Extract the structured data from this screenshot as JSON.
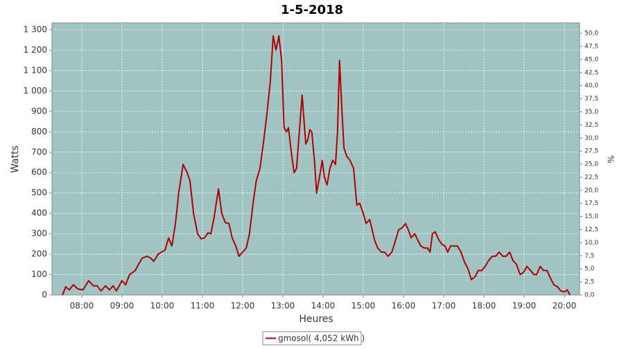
{
  "chart_data": {
    "type": "line",
    "title": "1-5-2018",
    "xlabel": "Heures",
    "ylabel": "Watts",
    "y2label": "%",
    "x": [
      7.52,
      7.6,
      7.69,
      7.79,
      7.9,
      8.03,
      8.17,
      8.29,
      8.38,
      8.48,
      8.59,
      8.69,
      8.78,
      8.86,
      9.0,
      9.09,
      9.19,
      9.33,
      9.41,
      9.5,
      9.62,
      9.72,
      9.79,
      9.9,
      9.98,
      10.07,
      10.16,
      10.24,
      10.33,
      10.41,
      10.52,
      10.62,
      10.69,
      10.78,
      10.88,
      10.97,
      11.05,
      11.14,
      11.21,
      11.29,
      11.4,
      11.48,
      11.57,
      11.66,
      11.74,
      11.83,
      11.91,
      12.0,
      12.09,
      12.17,
      12.26,
      12.34,
      12.43,
      12.52,
      12.6,
      12.69,
      12.76,
      12.83,
      12.9,
      12.97,
      13.03,
      13.09,
      13.14,
      13.21,
      13.28,
      13.34,
      13.41,
      13.48,
      13.57,
      13.62,
      13.67,
      13.72,
      13.79,
      13.84,
      13.93,
      13.98,
      14.03,
      14.1,
      14.17,
      14.24,
      14.31,
      14.36,
      14.41,
      14.47,
      14.52,
      14.59,
      14.67,
      14.76,
      14.84,
      14.91,
      15.0,
      15.07,
      15.16,
      15.22,
      15.28,
      15.36,
      15.45,
      15.53,
      15.62,
      15.71,
      15.79,
      15.88,
      15.97,
      16.05,
      16.12,
      16.19,
      16.28,
      16.34,
      16.43,
      16.52,
      16.6,
      16.66,
      16.72,
      16.79,
      16.88,
      16.95,
      17.03,
      17.1,
      17.17,
      17.26,
      17.34,
      17.43,
      17.52,
      17.6,
      17.69,
      17.78,
      17.86,
      17.95,
      18.03,
      18.12,
      18.21,
      18.29,
      18.38,
      18.47,
      18.55,
      18.64,
      18.72,
      18.81,
      18.9,
      18.98,
      19.07,
      19.16,
      19.24,
      19.31,
      19.4,
      19.48,
      19.57,
      19.66,
      19.74,
      19.83,
      19.91,
      20.0,
      20.07,
      20.14
    ],
    "series": [
      {
        "name": "gmosol( 4,052 kWh )",
        "color": "#b00000",
        "values": [
          0,
          40,
          25,
          50,
          30,
          25,
          70,
          45,
          45,
          20,
          45,
          25,
          45,
          20,
          70,
          50,
          100,
          120,
          150,
          180,
          190,
          180,
          165,
          200,
          210,
          220,
          280,
          240,
          350,
          500,
          640,
          600,
          560,
          400,
          300,
          275,
          280,
          305,
          300,
          380,
          520,
          400,
          355,
          350,
          280,
          240,
          190,
          210,
          230,
          300,
          450,
          560,
          620,
          750,
          880,
          1050,
          1270,
          1200,
          1270,
          1150,
          820,
          800,
          820,
          700,
          600,
          620,
          800,
          980,
          740,
          760,
          810,
          800,
          650,
          500,
          600,
          660,
          580,
          540,
          620,
          660,
          640,
          800,
          1150,
          900,
          720,
          680,
          660,
          620,
          440,
          450,
          400,
          350,
          370,
          320,
          270,
          230,
          210,
          210,
          190,
          210,
          260,
          320,
          330,
          350,
          320,
          280,
          300,
          275,
          240,
          230,
          230,
          210,
          300,
          310,
          270,
          250,
          240,
          210,
          240,
          240,
          240,
          210,
          160,
          130,
          75,
          90,
          120,
          120,
          140,
          170,
          190,
          190,
          210,
          190,
          190,
          210,
          170,
          150,
          100,
          110,
          140,
          120,
          100,
          100,
          140,
          120,
          120,
          80,
          50,
          40,
          20,
          15,
          25,
          0
        ]
      }
    ],
    "xlim": [
      7.26,
      20.38
    ],
    "xticks": [
      {
        "value": 8,
        "label": "08:00"
      },
      {
        "value": 9,
        "label": "09:00"
      },
      {
        "value": 10,
        "label": "10:00"
      },
      {
        "value": 11,
        "label": "11:00"
      },
      {
        "value": 12,
        "label": "12:00"
      },
      {
        "value": 13,
        "label": "13:00"
      },
      {
        "value": 14,
        "label": "14:00"
      },
      {
        "value": 15,
        "label": "15:00"
      },
      {
        "value": 16,
        "label": "16:00"
      },
      {
        "value": 17,
        "label": "17:00"
      },
      {
        "value": 18,
        "label": "18:00"
      },
      {
        "value": 19,
        "label": "19:00"
      },
      {
        "value": 20,
        "label": "20:00"
      }
    ],
    "ylim": [
      0,
      1334
    ],
    "yticks": [
      0,
      100,
      200,
      300,
      400,
      500,
      600,
      700,
      800,
      900,
      {
        "value": 1000,
        "label": "1 000"
      },
      {
        "value": 1100,
        "label": "1 100"
      },
      {
        "value": 1200,
        "label": "1 200"
      },
      {
        "value": 1300,
        "label": "1 300"
      }
    ],
    "y2lim": [
      0,
      52
    ],
    "y2ticks": [
      {
        "value": 0,
        "label": "0,0"
      },
      {
        "value": 2.5,
        "label": "2,5"
      },
      {
        "value": 5,
        "label": "5,0"
      },
      {
        "value": 7.5,
        "label": "7,5"
      },
      {
        "value": 10,
        "label": "10,0"
      },
      {
        "value": 12.5,
        "label": "12,5"
      },
      {
        "value": 15,
        "label": "15,0"
      },
      {
        "value": 17.5,
        "label": "17,5"
      },
      {
        "value": 20,
        "label": "20,0"
      },
      {
        "value": 22.5,
        "label": "22,5"
      },
      {
        "value": 25,
        "label": "25,0"
      },
      {
        "value": 27.5,
        "label": "27,5"
      },
      {
        "value": 30,
        "label": "30,0"
      },
      {
        "value": 32.5,
        "label": "32,5"
      },
      {
        "value": 35,
        "label": "35,0"
      },
      {
        "value": 37.5,
        "label": "37,5"
      },
      {
        "value": 40,
        "label": "40,0"
      },
      {
        "value": 42.5,
        "label": "42,5"
      },
      {
        "value": 45,
        "label": "45,0"
      },
      {
        "value": 47.5,
        "label": "47,5"
      },
      {
        "value": 50,
        "label": "50,0"
      }
    ],
    "grid": true,
    "background": "#a0c4c4"
  }
}
